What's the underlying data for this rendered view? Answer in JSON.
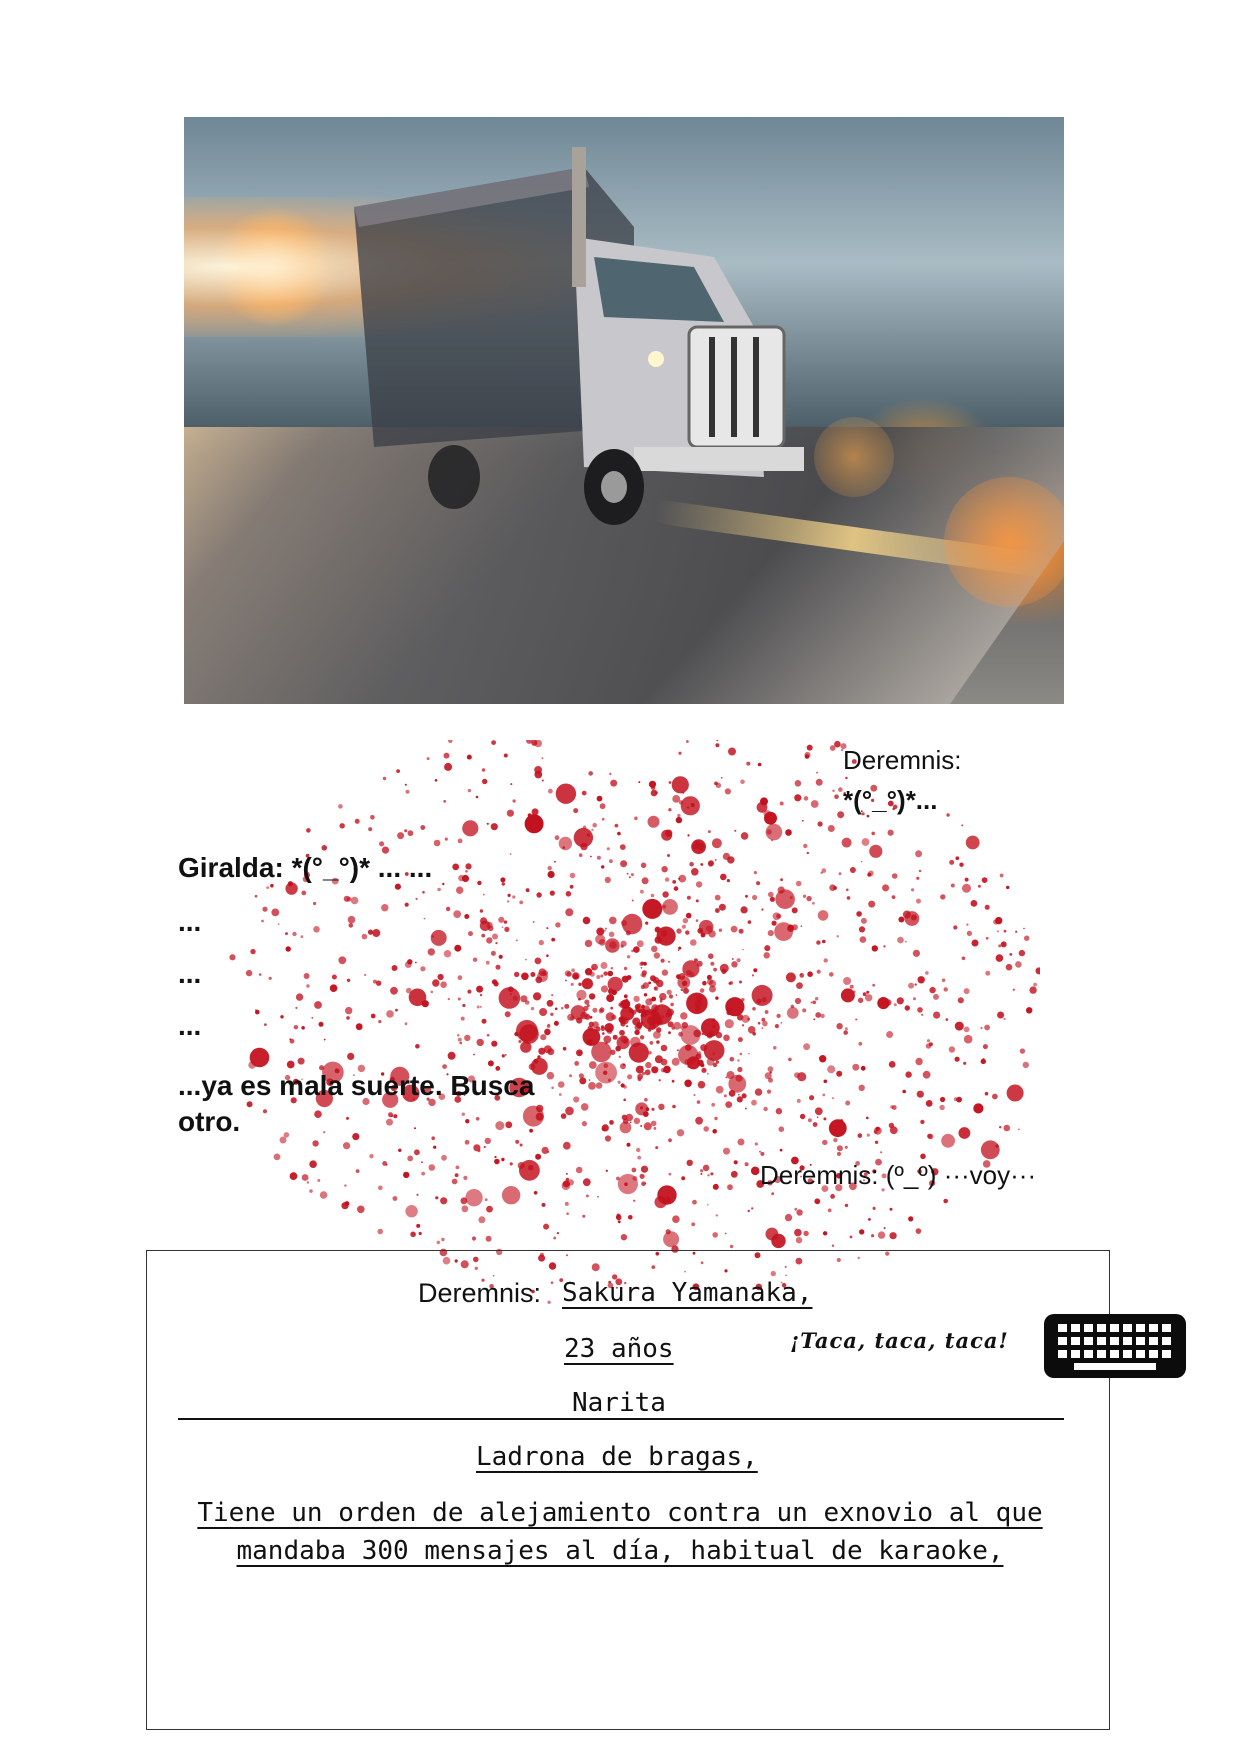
{
  "hero_image": {
    "icon": "speeding-truck-photo"
  },
  "top_right": {
    "speaker": "Deremnis:",
    "face": "*(°_°)*..."
  },
  "giralda": {
    "line": "Giralda: *(°_°)* ... ...",
    "dots": [
      "...",
      "...",
      "..."
    ],
    "bad_luck": "...ya es mala suerte. Busca otro."
  },
  "deremnis_reply": "Deremnis: (º_º) ···voy···",
  "card": {
    "speaker": "Deremnis:",
    "name": "Sakura Yamanaka,",
    "age": "23 años",
    "city": "Narita",
    "occupation": "Ladrona de bragas,",
    "description": "Tiene un orden de alejamiento contra un exnovio al que mandaba 300 mensajes al día, habitual de karaoke,"
  },
  "typing_sfx": "¡Taca, taca, taca!",
  "keyboard": {
    "icon": "keyboard-icon"
  },
  "colors": {
    "blood": "#c3121f",
    "ink": "#111111",
    "border": "#333333"
  }
}
